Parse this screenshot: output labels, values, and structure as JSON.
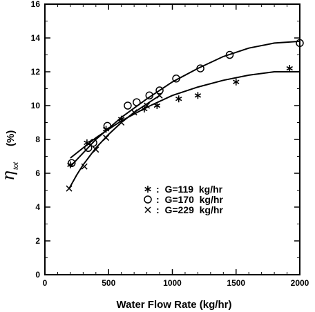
{
  "chart_data": {
    "type": "scatter",
    "xlabel": "Water Flow Rate   (kg/hr)",
    "ylabel_main": "η",
    "ylabel_sub": "tot",
    "ylabel_unit": "(%)",
    "xlim": [
      0,
      2000
    ],
    "ylim": [
      0,
      16
    ],
    "x_ticks": [
      0,
      500,
      1000,
      1500,
      2000
    ],
    "y_ticks": [
      0,
      2,
      4,
      6,
      8,
      10,
      12,
      14,
      16
    ],
    "grid": false,
    "legend_position": "bottom-right",
    "series": [
      {
        "name": "G=119  kg/hr",
        "legend_label": ":  G=119  kg/hr",
        "marker": "star",
        "x": [
          200,
          330,
          480,
          600,
          780,
          880,
          1050,
          1200,
          1500,
          1920
        ],
        "y": [
          6.5,
          7.8,
          8.6,
          9.2,
          9.8,
          10.0,
          10.4,
          10.6,
          11.4,
          12.2
        ],
        "fit_x": [
          200,
          400,
          600,
          800,
          1000,
          1200,
          1400,
          1600,
          1800,
          2000
        ],
        "fit_y": [
          6.9,
          8.1,
          9.1,
          9.9,
          10.6,
          11.1,
          11.5,
          11.8,
          12.0,
          12.0
        ]
      },
      {
        "name": "G=170  kg/hr",
        "legend_label": ":  G=170  kg/hr",
        "marker": "circle",
        "x": [
          210,
          340,
          380,
          490,
          650,
          720,
          820,
          900,
          1030,
          1220,
          1450,
          2000
        ],
        "y": [
          6.6,
          7.5,
          7.8,
          8.8,
          10.0,
          10.2,
          10.6,
          10.9,
          11.6,
          12.2,
          13.0,
          13.7
        ],
        "fit_x": [
          200,
          400,
          600,
          800,
          1000,
          1200,
          1400,
          1600,
          1800,
          2000
        ],
        "fit_y": [
          6.4,
          8.0,
          9.3,
          10.4,
          11.4,
          12.2,
          12.9,
          13.4,
          13.7,
          13.8
        ]
      },
      {
        "name": "G=229  kg/hr",
        "legend_label": ":  G=229  kg/hr",
        "marker": "x",
        "x": [
          190,
          310,
          400,
          480,
          600,
          700,
          800,
          900
        ],
        "y": [
          5.1,
          6.4,
          7.4,
          8.1,
          9.0,
          9.6,
          10.0,
          10.6
        ],
        "fit_x": [
          190,
          250,
          300,
          400,
          500,
          600,
          700,
          800,
          900
        ],
        "fit_y": [
          5.1,
          5.9,
          6.5,
          7.5,
          8.3,
          9.0,
          9.6,
          10.1,
          10.6
        ]
      }
    ]
  }
}
